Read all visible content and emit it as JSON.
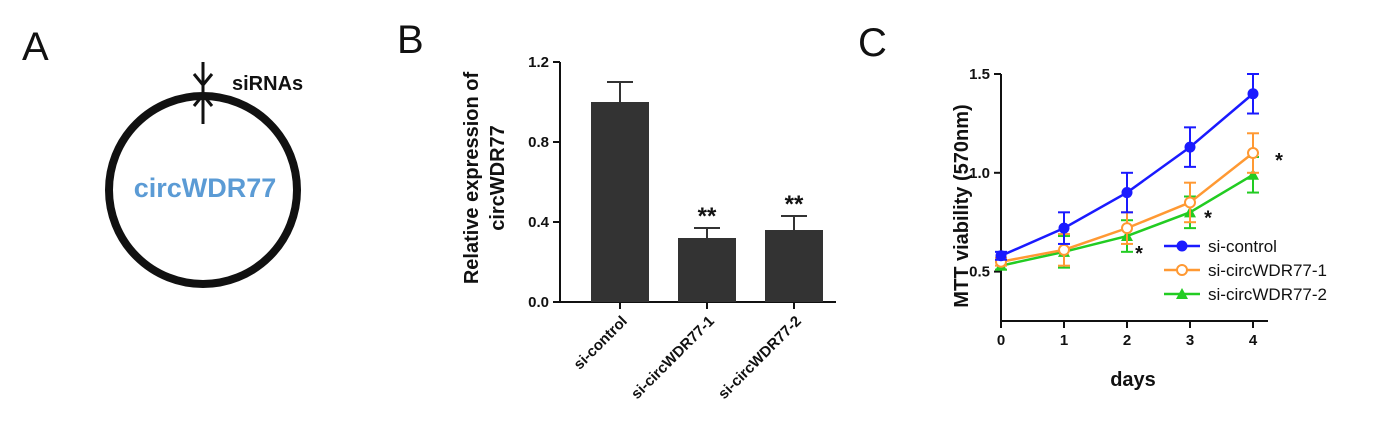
{
  "panels": {
    "a": {
      "letter": "A",
      "circle_label": "circWDR77",
      "circle_label_color": "#5b9bd5",
      "sirna_label": "siRNAs",
      "icon": "arrow-down-icon"
    },
    "b": {
      "letter": "B"
    },
    "c": {
      "letter": "C"
    }
  },
  "colors": {
    "bar": "#333333",
    "si_control": "#1a1aff",
    "si_circ1": "#ff9933",
    "si_circ2": "#22cc22"
  },
  "chart_data": [
    {
      "type": "bar",
      "ylabel_line1": "Relative expression of",
      "ylabel_line2": "circWDR77",
      "xlabel": "",
      "ylim": [
        0.0,
        1.2
      ],
      "yticks": [
        0.0,
        0.4,
        0.8,
        1.2
      ],
      "ytick_labels": [
        "0.0",
        "0.4",
        "0.8",
        "1.2"
      ],
      "categories": [
        "si-control",
        "si-circWDR77-1",
        "si-circWDR77-2"
      ],
      "values": [
        1.0,
        0.32,
        0.36
      ],
      "errors": [
        0.1,
        0.05,
        0.07
      ],
      "significance": [
        "",
        "**",
        "**"
      ]
    },
    {
      "type": "line",
      "ylabel": "MTT viability (570nm)",
      "xlabel": "days",
      "x": [
        0,
        1,
        2,
        3,
        4
      ],
      "xtick_labels": [
        "0",
        "1",
        "2",
        "3",
        "4"
      ],
      "xlim": [
        0,
        4.3
      ],
      "ylim": [
        0.25,
        1.5
      ],
      "yticks": [
        0.5,
        1.0,
        1.5
      ],
      "ytick_labels": [
        "0.5",
        "1.0",
        "1.5"
      ],
      "legend_position": "bottom-right",
      "series": [
        {
          "name": "si-control",
          "values": [
            0.58,
            0.72,
            0.9,
            1.13,
            1.4
          ],
          "errors": [
            0.02,
            0.08,
            0.1,
            0.1,
            0.1
          ]
        },
        {
          "name": "si-circWDR77-1",
          "values": [
            0.55,
            0.61,
            0.72,
            0.85,
            1.1
          ],
          "errors": [
            0.02,
            0.08,
            0.08,
            0.1,
            0.1
          ]
        },
        {
          "name": "si-circWDR77-2",
          "values": [
            0.53,
            0.6,
            0.68,
            0.8,
            0.99
          ],
          "errors": [
            0.02,
            0.08,
            0.08,
            0.08,
            0.09
          ]
        }
      ],
      "annotations": [
        {
          "text": "*",
          "x": 2,
          "series": 2
        },
        {
          "text": "*",
          "x": 3,
          "series": 1
        },
        {
          "text": "*",
          "x": 4,
          "series": 1
        }
      ]
    }
  ]
}
